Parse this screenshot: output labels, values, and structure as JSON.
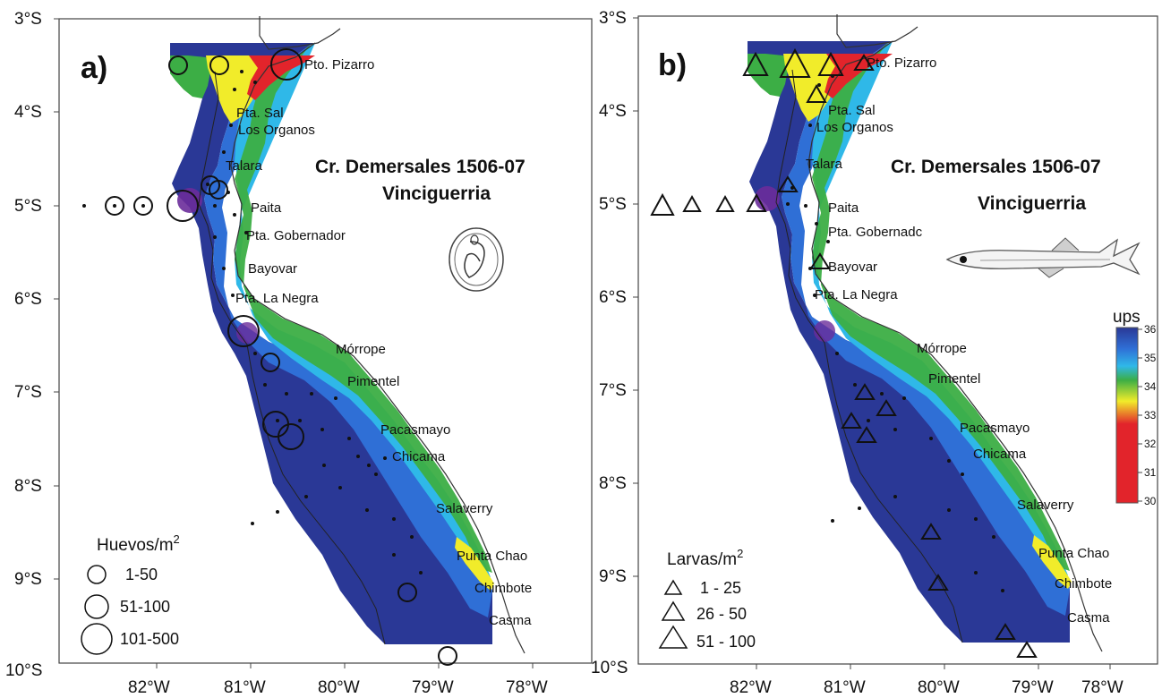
{
  "colors": {
    "high_salinity": "#2a3896",
    "mid_blue": "#2f6fd6",
    "cyan": "#2fb8e8",
    "green": "#3cae45",
    "yellow": "#f1ec2a",
    "red": "#e2242b",
    "frame": "#444444"
  },
  "panels": [
    {
      "id": "a",
      "label": "a)",
      "title_line1": "Cr. Demersales 1506-07",
      "title_line2": "Vinciguerria",
      "icon": "fish-egg-icon",
      "legend": {
        "title": "Huevos/m",
        "sup": "2",
        "symbol": "circle",
        "classes": [
          "1-50",
          "51-100",
          "101-500"
        ]
      },
      "lat_ticks": [
        "3°S",
        "4°S",
        "5°S",
        "6°S",
        "7°S",
        "8°S",
        "9°S",
        "10°S"
      ],
      "lon_ticks": [
        "82°W",
        "81°W",
        "80°W",
        "79°W",
        "78°W"
      ],
      "places": [
        "Pto. Pizarro",
        "Pta. Sal",
        "Los Organos",
        "Talara",
        "Paita",
        "Pta. Gobernador",
        "Bayovar",
        "Pta. La Negra",
        "Mórrope",
        "Pimentel",
        "Pacasmayo",
        "Chicama",
        "Salaverry",
        "Punta Chao",
        "Chimbote",
        "Casma"
      ]
    },
    {
      "id": "b",
      "label": "b)",
      "title_line1": "Cr. Demersales 1506-07",
      "title_line2": "Vinciguerria",
      "icon": "fish-larva-icon",
      "legend": {
        "title": "Larvas/m",
        "sup": "2",
        "symbol": "triangle",
        "classes": [
          "1 - 25",
          "26 - 50",
          "51 - 100"
        ]
      },
      "lat_ticks": [
        "3°S",
        "4°S",
        "5°S",
        "6°S",
        "7°S",
        "8°S",
        "9°S",
        "10°S"
      ],
      "lon_ticks": [
        "82°W",
        "81°W",
        "80°W",
        "79°W",
        "78°W"
      ],
      "places": [
        "Pto. Pizarro",
        "Pta. Sal",
        "Los Organos",
        "Talara",
        "Paita",
        "Pta. Gobernadc",
        "Bayovar",
        "Pta. La Negra",
        "Mórrope",
        "Pimentel",
        "Pacasmayo",
        "Chicama",
        "Salaverry",
        "Punta Chao",
        "Chimbote",
        "Casma"
      ]
    }
  ],
  "colorbar": {
    "title": "ups",
    "ticks": [
      "36",
      "35",
      "34",
      "33",
      "32",
      "31",
      "30"
    ]
  }
}
